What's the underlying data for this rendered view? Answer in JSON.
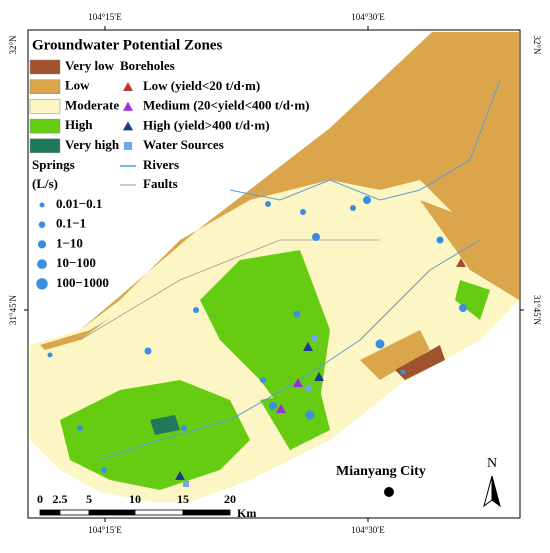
{
  "coordinates": {
    "top": [
      "104°15′E",
      "104°30′E"
    ],
    "bottom": [
      "104°15′E",
      "104°30′E"
    ],
    "left": [
      "32°N",
      "31°45′N"
    ],
    "right": [
      "32°N",
      "31°45′N"
    ]
  },
  "legend": {
    "title": "Groundwater Potential Zones",
    "zones": [
      {
        "label": "Very low",
        "color": "#a0522d"
      },
      {
        "label": "Low",
        "color": "#dba54c"
      },
      {
        "label": "Moderate",
        "color": "#fcf6c4"
      },
      {
        "label": "High",
        "color": "#66cc11"
      },
      {
        "label": "Very high",
        "color": "#1f7a5c"
      }
    ],
    "boreholes": {
      "title": "Boreholes",
      "items": [
        {
          "label": "Low (yield<20 t/d·m)",
          "color": "#c0392b"
        },
        {
          "label": "Medium (20<yield<400 t/d·m)",
          "color": "#9b30d9"
        },
        {
          "label": "High (yield>400 t/d·m)",
          "color": "#1a3a8a"
        }
      ]
    },
    "water_sources": {
      "label": "Water Sources",
      "color": "#6fa8e8"
    },
    "rivers": {
      "label": "Rivers",
      "color": "#5b9bd5"
    },
    "faults": {
      "label": "Faults",
      "color": "#999999"
    },
    "springs": {
      "title": "Springs",
      "unit": "(L/s)",
      "color": "#3a8fe0",
      "items": [
        "0.01−0.1",
        "0.1−1",
        "1−10",
        "10−100",
        "100−1000"
      ]
    }
  },
  "scale_bar": {
    "labels": [
      "0",
      "2.5",
      "5",
      "10",
      "15",
      "20"
    ],
    "unit": "Km"
  },
  "city": "Mianyang City",
  "north": "N"
}
